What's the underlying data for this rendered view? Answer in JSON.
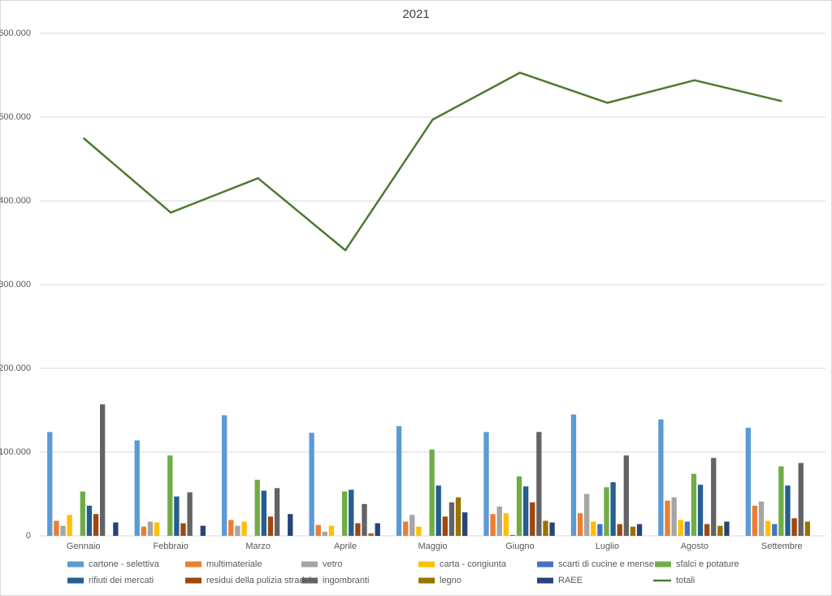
{
  "chart_data": {
    "type": "bar",
    "title": "2021",
    "categories": [
      "Gennaio",
      "Febbraio",
      "Marzo",
      "Aprile",
      "Maggio",
      "Giugno",
      "Luglio",
      "Agosto",
      "Settembre"
    ],
    "ylim": [
      0,
      600000
    ],
    "yticks": [
      0,
      {
        "value": 100000,
        "label": "100.000"
      },
      {
        "value": 200000,
        "label": "200.000"
      },
      {
        "value": 300000,
        "label": "300.000"
      },
      {
        "value": 400000,
        "label": "400.000"
      },
      {
        "value": 500000,
        "label": "500.000"
      },
      {
        "value": 600000,
        "label": "600.000"
      }
    ],
    "grid": true,
    "legend": "bottom",
    "series": [
      {
        "name": "cartone - selettiva",
        "color": "#5b9bd5",
        "values": [
          124000,
          114000,
          144000,
          123000,
          131000,
          124000,
          145000,
          139000,
          129000
        ]
      },
      {
        "name": "multimateriale",
        "color": "#ed7d31",
        "values": [
          18000,
          11000,
          19000,
          13000,
          17000,
          26000,
          27000,
          42000,
          36000
        ]
      },
      {
        "name": "vetro",
        "color": "#a5a5a5",
        "values": [
          12000,
          17000,
          12000,
          5000,
          25000,
          35000,
          50000,
          46000,
          41000
        ]
      },
      {
        "name": "carta - congiunta",
        "color": "#ffc000",
        "values": [
          25000,
          16000,
          17000,
          12000,
          11000,
          27000,
          17000,
          19000,
          18000
        ]
      },
      {
        "name": "scarti di cucine e mense",
        "color": "#4472c4",
        "values": [
          0,
          0,
          0,
          0,
          0,
          1000,
          14000,
          17000,
          14000
        ]
      },
      {
        "name": "sfalci e potature",
        "color": "#70ad47",
        "values": [
          53000,
          96000,
          67000,
          53000,
          103000,
          71000,
          58000,
          74000,
          83000
        ]
      },
      {
        "name": "rifiuti dei mercati",
        "color": "#255e91",
        "values": [
          36000,
          47000,
          54000,
          55000,
          60000,
          59000,
          64000,
          61000,
          60000
        ]
      },
      {
        "name": "residui della pulizia stradale",
        "color": "#9e480e",
        "values": [
          26000,
          15000,
          23000,
          15000,
          23000,
          40000,
          14000,
          14000,
          21000
        ]
      },
      {
        "name": "ingombranti",
        "color": "#636363",
        "values": [
          157000,
          52000,
          57000,
          38000,
          40000,
          124000,
          96000,
          93000,
          87000
        ]
      },
      {
        "name": "legno",
        "color": "#997300",
        "values": [
          0,
          0,
          0,
          3000,
          46000,
          18000,
          11000,
          12000,
          17000
        ]
      },
      {
        "name": "RAEE",
        "color": "#264478",
        "values": [
          16000,
          12000,
          26000,
          15000,
          28000,
          16000,
          14000,
          17000,
          0
        ]
      },
      {
        "name": "totali",
        "color": "#4e7a30",
        "type": "line",
        "values": [
          475000,
          386000,
          427000,
          341000,
          497000,
          553000,
          517000,
          544000,
          519000
        ]
      }
    ]
  }
}
